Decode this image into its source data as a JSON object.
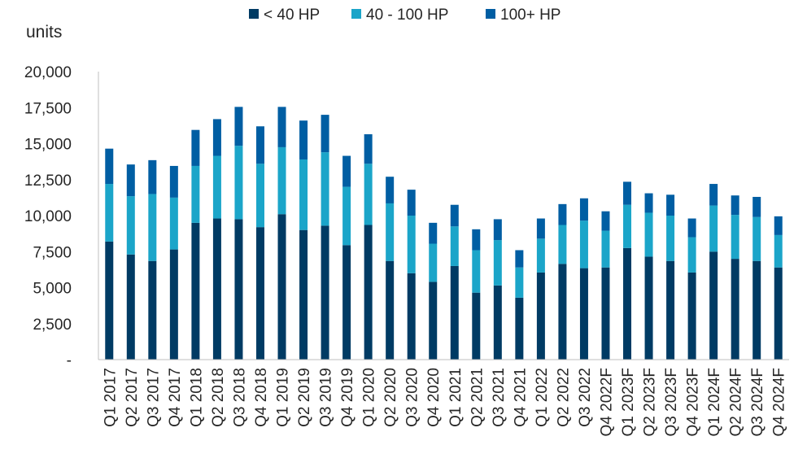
{
  "chart_data": {
    "type": "bar",
    "stacked": true,
    "ylabel": "units",
    "ylim": [
      0,
      20000
    ],
    "yticks": [
      0,
      2500,
      5000,
      7500,
      10000,
      12500,
      15000,
      17500,
      20000
    ],
    "ytick_labels": [
      "-",
      "2,500",
      "5,000",
      "7,500",
      "10,000",
      "12,500",
      "15,000",
      "17,500",
      "20,000"
    ],
    "grid": false,
    "legend_position": "top-center",
    "categories": [
      "Q1 2017",
      "Q2 2017",
      "Q3 2017",
      "Q4 2017",
      "Q1 2018",
      "Q2 2018",
      "Q3 2018",
      "Q4 2018",
      "Q1 2019",
      "Q2 2019",
      "Q3 2019",
      "Q4 2019",
      "Q1 2020",
      "Q2 2020",
      "Q3 2020",
      "Q4 2020",
      "Q1 2021",
      "Q2 2021",
      "Q3 2021",
      "Q4 2021",
      "Q1 2022",
      "Q2 2022",
      "Q3 2022",
      "Q4 2022F",
      "Q1 2023F",
      "Q2 2023F",
      "Q3 2023F",
      "Q4 2023F",
      "Q1 2024F",
      "Q2 2024F",
      "Q3 2024F",
      "Q4 2024F"
    ],
    "series": [
      {
        "name": "< 40 HP",
        "color": "#003b64",
        "values": [
          8200,
          7300,
          6850,
          7650,
          9500,
          9800,
          9750,
          9200,
          10100,
          9000,
          9300,
          7950,
          9350,
          6850,
          6000,
          5400,
          6500,
          4650,
          5150,
          4300,
          6050,
          6650,
          6350,
          6400,
          7750,
          7150,
          6850,
          6050,
          7500,
          7000,
          6850,
          6400
        ]
      },
      {
        "name": "40 - 100 HP",
        "color": "#1ba5c9",
        "values": [
          4000,
          4050,
          4650,
          3600,
          3950,
          4350,
          5100,
          4400,
          4650,
          4900,
          5100,
          4050,
          4250,
          4000,
          4000,
          2650,
          2750,
          2950,
          3150,
          2100,
          2350,
          2700,
          3300,
          2550,
          3000,
          3050,
          3150,
          2450,
          3200,
          3050,
          3050,
          2250
        ]
      },
      {
        "name": "100+ HP",
        "color": "#005ea3",
        "values": [
          2450,
          2200,
          2350,
          2200,
          2500,
          2550,
          2700,
          2600,
          2800,
          2700,
          2600,
          2150,
          2050,
          1850,
          1800,
          1450,
          1500,
          1450,
          1450,
          1200,
          1400,
          1450,
          1550,
          1350,
          1600,
          1350,
          1450,
          1300,
          1500,
          1350,
          1400,
          1300
        ]
      }
    ]
  }
}
